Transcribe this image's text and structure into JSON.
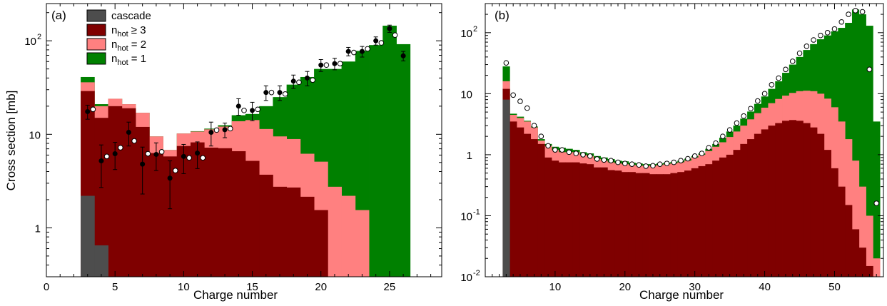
{
  "figure": {
    "shared_ylabel": "Cross section [mb]",
    "colors": {
      "cascade": "#4d4d4d",
      "nhot_ge3": "#7f0000",
      "nhot_2": "#ff8080",
      "nhot_1": "#008000",
      "edge": "#000000"
    }
  },
  "chart_data": [
    {
      "type": "bar",
      "panel_label": "(a)",
      "xlabel": "Charge number",
      "ylabel": "Cross section [mb]",
      "yscale": "log",
      "xlim": [
        0,
        28.8
      ],
      "ylim": [
        0.3,
        250
      ],
      "xticks": [
        "0",
        "5",
        "10",
        "15",
        "20",
        "25"
      ],
      "yticks": [
        "1",
        "10",
        "10^2"
      ],
      "legend": {
        "placement": "top-left",
        "entries": [
          {
            "key": "cascade",
            "label": "cascade",
            "color": "#4d4d4d"
          },
          {
            "key": "nhot_ge3",
            "label_base": "n",
            "label_sub": "hot",
            "label_rest": " ≥ 3",
            "color": "#7f0000"
          },
          {
            "key": "nhot_2",
            "label_base": "n",
            "label_sub": "hot",
            "label_rest": " = 2",
            "color": "#ff8080"
          },
          {
            "key": "nhot_1",
            "label_base": "n",
            "label_sub": "hot",
            "label_rest": " = 1",
            "color": "#008000"
          }
        ]
      },
      "x": [
        3,
        4,
        5,
        6,
        7,
        8,
        9,
        10,
        11,
        12,
        13,
        14,
        15,
        16,
        17,
        18,
        19,
        20,
        21,
        22,
        23,
        24,
        25,
        26
      ],
      "stacks": {
        "cascade": [
          2.2,
          0.65,
          0,
          0,
          0,
          0,
          0,
          0,
          0,
          0,
          0,
          0,
          0,
          0,
          0,
          0,
          0,
          0,
          0,
          0,
          0,
          0,
          0,
          0
        ],
        "nhot_ge3": [
          29,
          15,
          20,
          19,
          12,
          6.3,
          5.8,
          7.5,
          8.2,
          7.2,
          7.1,
          6.6,
          5.2,
          3.7,
          2.75,
          2.7,
          2.15,
          1.55,
          0.3,
          0.3,
          0.3,
          0.3,
          0.3,
          0.3
        ],
        "nhot_2": [
          36,
          20,
          24,
          21,
          17,
          9.5,
          6.8,
          10.2,
          10.7,
          11.3,
          12.1,
          13.8,
          14.2,
          11.4,
          9.5,
          8.9,
          6.2,
          5.1,
          2.75,
          2.2,
          1.55,
          0.3,
          0.3,
          0.3
        ],
        "nhot_1": [
          41,
          21,
          24,
          21,
          17,
          9.5,
          6.8,
          10.2,
          10.8,
          11.5,
          12.5,
          16,
          16.5,
          20,
          25,
          34,
          41,
          50,
          50,
          60,
          78,
          90,
          145,
          92
        ]
      },
      "series": [
        {
          "style": "filled-circle",
          "x": [
            3,
            4,
            5,
            6,
            7,
            8,
            9,
            10,
            11,
            12,
            13,
            14,
            15,
            16,
            17,
            18,
            19,
            20,
            21,
            22,
            23,
            24,
            25,
            26
          ],
          "values": [
            17.5,
            5.2,
            6.2,
            10.5,
            4.8,
            6.1,
            3.4,
            5.8,
            6.3,
            10.5,
            11.2,
            20,
            18,
            28,
            28,
            37,
            40,
            55,
            57,
            77,
            77,
            100,
            135,
            69
          ],
          "err": [
            3,
            2.5,
            2,
            3,
            2.5,
            2,
            1.8,
            2,
            2,
            3,
            2,
            4,
            4,
            5,
            5,
            6,
            7,
            8,
            8,
            8,
            10,
            10,
            12,
            8
          ]
        },
        {
          "style": "open-circle",
          "x": [
            3.4,
            4.4,
            5.4,
            6.4,
            7.4,
            8.4,
            9.4,
            10.4,
            11.4,
            12.4,
            13.4,
            14.4,
            15.4,
            16.4,
            17.4,
            18.4,
            19.4,
            20.4,
            21.4,
            22.4,
            23.4,
            24.4,
            25.4
          ],
          "values": [
            18.5,
            5.8,
            7.2,
            8.5,
            6.2,
            6.5,
            4.1,
            5.6,
            5.6,
            11.1,
            11.5,
            18,
            18.5,
            28,
            27,
            36,
            38,
            55,
            57,
            75,
            82,
            95,
            115
          ]
        }
      ]
    },
    {
      "type": "bar",
      "panel_label": "(b)",
      "xlabel": "Charge number",
      "ylabel": "",
      "yscale": "log",
      "xlim": [
        0,
        57
      ],
      "ylim": [
        0.01,
        300
      ],
      "xticks": [
        "10",
        "20",
        "30",
        "40",
        "50"
      ],
      "yticks": [
        {
          "base": "10",
          "exp": "-2",
          "value": 0.01
        },
        {
          "base": "10",
          "exp": "-1",
          "value": 0.1
        },
        {
          "base": "1",
          "exp": "",
          "value": 1
        },
        {
          "base": "10",
          "exp": "",
          "value": 10
        },
        {
          "base": "10",
          "exp": "2",
          "value": 100
        }
      ],
      "x": [
        3,
        4,
        5,
        6,
        7,
        8,
        9,
        10,
        11,
        12,
        13,
        14,
        15,
        16,
        17,
        18,
        19,
        20,
        21,
        22,
        23,
        24,
        25,
        26,
        27,
        28,
        29,
        30,
        31,
        32,
        33,
        34,
        35,
        36,
        37,
        38,
        39,
        40,
        41,
        42,
        43,
        44,
        45,
        46,
        47,
        48,
        49,
        50,
        51,
        52,
        53,
        54,
        55,
        56
      ],
      "stacks": {
        "cascade": [
          8,
          0,
          0,
          0,
          0,
          0,
          0,
          0,
          0,
          0,
          0,
          0,
          0,
          0,
          0,
          0,
          0,
          0,
          0,
          0,
          0,
          0,
          0,
          0,
          0,
          0,
          0,
          0,
          0,
          0,
          0,
          0,
          0,
          0,
          0,
          0,
          0,
          0,
          0,
          0,
          0,
          0,
          0,
          0,
          0,
          0,
          0,
          0,
          0,
          0,
          0,
          0,
          0,
          0
        ],
        "nhot_ge3": [
          12,
          3.5,
          2.8,
          2.2,
          1.8,
          1.5,
          0.9,
          0.8,
          0.75,
          0.75,
          0.75,
          0.72,
          0.7,
          0.62,
          0.62,
          0.56,
          0.55,
          0.52,
          0.52,
          0.5,
          0.5,
          0.48,
          0.48,
          0.48,
          0.5,
          0.52,
          0.55,
          0.6,
          0.65,
          0.7,
          0.8,
          0.9,
          1,
          1.2,
          1.5,
          1.8,
          2.2,
          2.6,
          3,
          3.3,
          3.6,
          3.7,
          3.6,
          3.3,
          2.8,
          2.2,
          1.2,
          0.6,
          0.3,
          0.15,
          0.06,
          0.03,
          0.015,
          0.01
        ],
        "nhot_2": [
          16,
          4.5,
          4,
          3.5,
          2.8,
          1.7,
          1.4,
          1.2,
          1.1,
          1.1,
          1.1,
          1.0,
          0.95,
          0.85,
          0.8,
          0.75,
          0.72,
          0.7,
          0.68,
          0.66,
          0.66,
          0.66,
          0.68,
          0.7,
          0.72,
          0.75,
          0.8,
          0.9,
          1,
          1.15,
          1.35,
          1.6,
          1.95,
          2.4,
          3,
          3.8,
          4.8,
          5.9,
          7,
          8.2,
          9.3,
          10.3,
          11,
          11.2,
          11,
          10,
          8.3,
          6,
          3.5,
          1.8,
          0.8,
          0.3,
          0.1,
          0.02
        ],
        "nhot_1": [
          28,
          4.7,
          4.2,
          3.6,
          2.9,
          1.8,
          1.5,
          1.35,
          1.3,
          1.25,
          1.2,
          1.1,
          1.05,
          0.95,
          0.9,
          0.85,
          0.8,
          0.78,
          0.74,
          0.72,
          0.7,
          0.7,
          0.72,
          0.74,
          0.76,
          0.8,
          0.86,
          0.95,
          1.05,
          1.25,
          1.5,
          1.9,
          2.4,
          3,
          3.9,
          5.1,
          6.8,
          9,
          12,
          16,
          22,
          30,
          40,
          52,
          65,
          78,
          90,
          105,
          120,
          145,
          240,
          200,
          130,
          3.5
        ]
      },
      "series": [
        {
          "style": "open-circle",
          "x": [
            3,
            4,
            5,
            6,
            7,
            8,
            9,
            10,
            11,
            12,
            13,
            14,
            15,
            16,
            17,
            18,
            19,
            20,
            21,
            22,
            23,
            24,
            25,
            26,
            27,
            28,
            29,
            30,
            31,
            32,
            33,
            34,
            35,
            36,
            37,
            38,
            39,
            40,
            41,
            42,
            43,
            44,
            45,
            46,
            47,
            48,
            49,
            50,
            51,
            52,
            53,
            54,
            55,
            56
          ],
          "values": [
            32,
            9.5,
            7.5,
            5.8,
            3,
            2,
            1.4,
            1.2,
            1.2,
            1.1,
            1.05,
            1.0,
            0.95,
            0.85,
            0.82,
            0.8,
            0.75,
            0.72,
            0.7,
            0.68,
            0.65,
            0.66,
            0.7,
            0.72,
            0.75,
            0.8,
            0.86,
            0.95,
            1.05,
            1.3,
            1.55,
            2,
            2.55,
            3.3,
            4.3,
            5.7,
            7.6,
            10,
            14,
            18,
            25,
            34,
            46,
            60,
            76,
            90,
            100,
            115,
            150,
            200,
            230,
            220,
            25,
            0.16
          ]
        }
      ]
    }
  ]
}
